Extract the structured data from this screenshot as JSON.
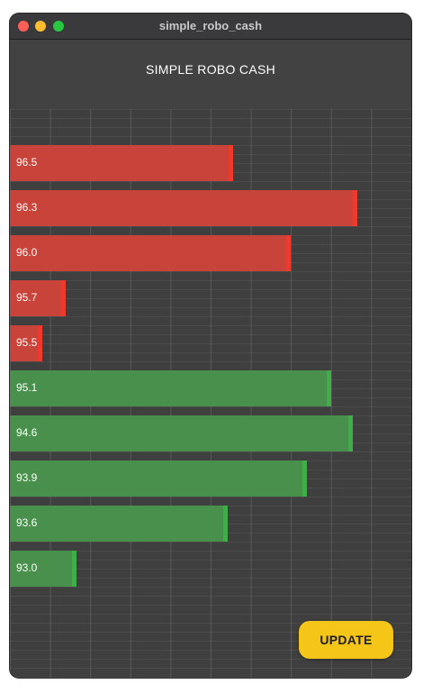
{
  "window": {
    "title": "simple_robo_cash"
  },
  "appbar": {
    "title": "SIMPLE ROBO CASH"
  },
  "colors": {
    "ask_bar": "#c8433a",
    "ask_edge": "#ee3a2c",
    "bid_bar": "#48904b",
    "bid_edge": "#3fae49",
    "button": "#f5c518"
  },
  "chart_data": {
    "type": "bar",
    "orientation": "horizontal",
    "grid": true,
    "bars": [
      {
        "label": "96.5",
        "side": "ask",
        "level": 0.555
      },
      {
        "label": "96.3",
        "side": "ask",
        "level": 0.865
      },
      {
        "label": "96.0",
        "side": "ask",
        "level": 0.7
      },
      {
        "label": "95.7",
        "side": "ask",
        "level": 0.14
      },
      {
        "label": "95.5",
        "side": "ask",
        "level": 0.08
      },
      {
        "label": "95.1",
        "side": "bid",
        "level": 0.8
      },
      {
        "label": "94.6",
        "side": "bid",
        "level": 0.855
      },
      {
        "label": "93.9",
        "side": "bid",
        "level": 0.74
      },
      {
        "label": "93.6",
        "side": "bid",
        "level": 0.543
      },
      {
        "label": "93.0",
        "side": "bid",
        "level": 0.165
      }
    ]
  },
  "actions": {
    "update_label": "UPDATE"
  }
}
